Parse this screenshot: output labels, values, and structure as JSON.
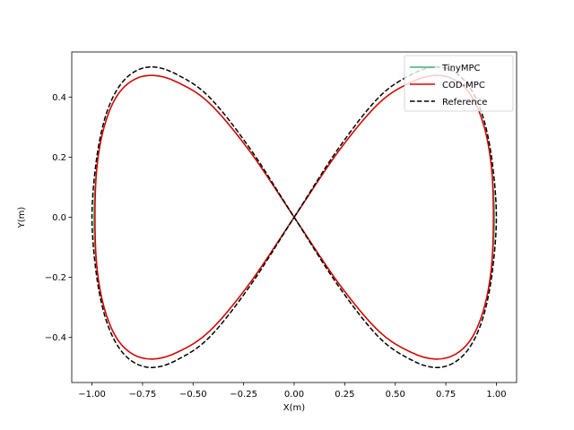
{
  "chart_data": {
    "type": "line",
    "title": "",
    "xlabel": "X(m)",
    "ylabel": "Y(m)",
    "xlim": [
      -1.1,
      1.1
    ],
    "ylim": [
      -0.55,
      0.55
    ],
    "xticks": [
      -1.0,
      -0.75,
      -0.5,
      -0.25,
      0.0,
      0.25,
      0.5,
      0.75,
      1.0
    ],
    "xtick_labels": [
      "−1.00",
      "−0.75",
      "−0.50",
      "−0.25",
      "0.00",
      "0.25",
      "0.50",
      "0.75",
      "1.00"
    ],
    "yticks": [
      -0.4,
      -0.2,
      0.0,
      0.2,
      0.4
    ],
    "ytick_labels": [
      "−0.4",
      "−0.2",
      "0.0",
      "0.2",
      "0.4"
    ],
    "grid": false,
    "legend_position": "top-right",
    "series": [
      {
        "name": "TinyMPC",
        "color": "#3cb371",
        "style": "solid",
        "x": [
          0.0,
          0.22,
          0.42,
          0.58,
          0.7,
          0.8,
          0.88,
          0.94,
          0.975,
          0.99,
          0.975,
          0.94,
          0.88,
          0.8,
          0.7,
          0.58,
          0.42,
          0.22,
          0.0,
          -0.22,
          -0.42,
          -0.58,
          -0.7,
          -0.8,
          -0.88,
          -0.94,
          -0.975,
          -0.99,
          -0.975,
          -0.94,
          -0.88,
          -0.8,
          -0.7,
          -0.58,
          -0.42,
          -0.22,
          0.0
        ],
        "y": [
          0.0,
          0.22,
          0.38,
          0.45,
          0.472,
          0.455,
          0.4,
          0.3,
          0.17,
          0.0,
          -0.17,
          -0.3,
          -0.4,
          -0.455,
          -0.472,
          -0.45,
          -0.38,
          -0.22,
          0.0,
          0.22,
          0.38,
          0.45,
          0.472,
          0.455,
          0.4,
          0.3,
          0.17,
          0.0,
          -0.17,
          -0.3,
          -0.4,
          -0.455,
          -0.472,
          -0.45,
          -0.38,
          -0.22,
          0.0
        ]
      },
      {
        "name": "COD-MPC",
        "color": "#e00000",
        "style": "solid",
        "x": [
          0.0,
          0.22,
          0.42,
          0.58,
          0.7,
          0.8,
          0.88,
          0.94,
          0.975,
          0.985,
          0.975,
          0.94,
          0.88,
          0.8,
          0.7,
          0.58,
          0.42,
          0.22,
          0.0,
          -0.22,
          -0.42,
          -0.58,
          -0.7,
          -0.8,
          -0.88,
          -0.94,
          -0.975,
          -0.985,
          -0.975,
          -0.94,
          -0.88,
          -0.8,
          -0.7,
          -0.58,
          -0.42,
          -0.22,
          0.0
        ],
        "y": [
          0.0,
          0.22,
          0.38,
          0.45,
          0.472,
          0.455,
          0.4,
          0.3,
          0.17,
          0.0,
          -0.17,
          -0.3,
          -0.4,
          -0.455,
          -0.472,
          -0.45,
          -0.38,
          -0.22,
          0.0,
          0.22,
          0.38,
          0.45,
          0.472,
          0.455,
          0.4,
          0.3,
          0.17,
          0.0,
          -0.17,
          -0.3,
          -0.4,
          -0.455,
          -0.472,
          -0.45,
          -0.38,
          -0.22,
          0.0
        ]
      },
      {
        "name": "Reference",
        "color": "#000000",
        "style": "dashed",
        "x": [
          0.0,
          0.22,
          0.42,
          0.58,
          0.7,
          0.8,
          0.88,
          0.94,
          0.98,
          1.0,
          0.98,
          0.94,
          0.88,
          0.8,
          0.7,
          0.58,
          0.42,
          0.22,
          0.0,
          -0.22,
          -0.42,
          -0.58,
          -0.7,
          -0.8,
          -0.88,
          -0.94,
          -0.98,
          -1.0,
          -0.98,
          -0.94,
          -0.88,
          -0.8,
          -0.7,
          -0.58,
          -0.42,
          -0.22,
          0.0
        ],
        "y": [
          0.0,
          0.23,
          0.4,
          0.475,
          0.5,
          0.48,
          0.42,
          0.32,
          0.18,
          0.0,
          -0.18,
          -0.32,
          -0.42,
          -0.48,
          -0.5,
          -0.475,
          -0.4,
          -0.23,
          0.0,
          0.23,
          0.4,
          0.475,
          0.5,
          0.48,
          0.42,
          0.32,
          0.18,
          0.0,
          -0.18,
          -0.32,
          -0.42,
          -0.48,
          -0.5,
          -0.475,
          -0.4,
          -0.23,
          0.0
        ]
      }
    ]
  }
}
